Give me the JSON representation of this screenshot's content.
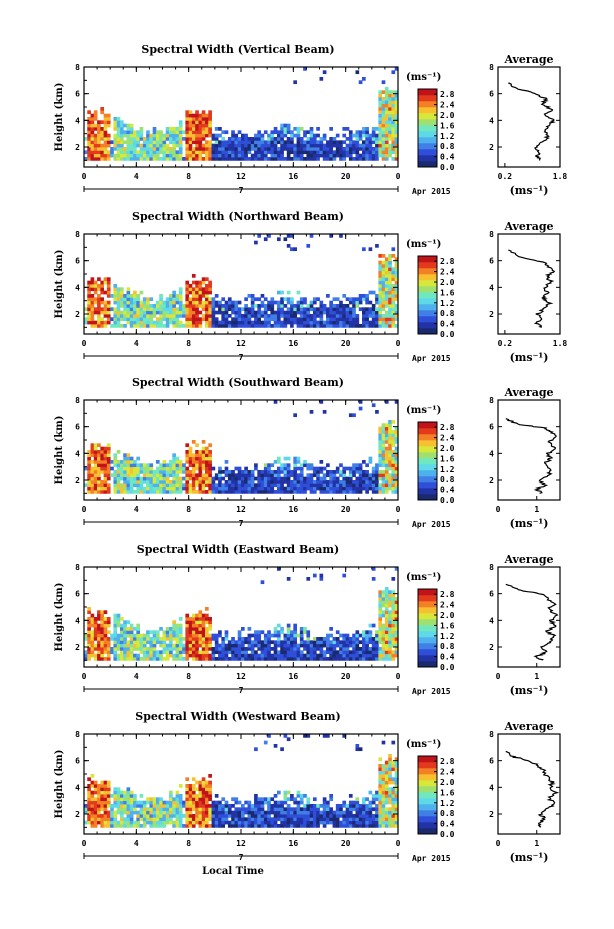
{
  "chart_data": [
    {
      "type": "heatmap",
      "title": "Spectral Width (Vertical Beam)",
      "ylabel": "Height (km)",
      "xlim": [
        0,
        24
      ],
      "ylim": [
        0.5,
        8
      ],
      "xticks": [
        "0",
        "4",
        "8",
        "12",
        "16",
        "20",
        "0"
      ],
      "yticks": [
        "2",
        "4",
        "6",
        "8"
      ],
      "date_tick": "7",
      "date_label": "Apr 2015",
      "colorbar_unit": "(ms⁻¹)",
      "colorbar_ticks": [
        "2.8",
        "2.4",
        "2.0",
        "1.6",
        "1.2",
        "0.8",
        "0.4",
        "0.0"
      ],
      "colorbar_range": [
        0,
        3.0
      ],
      "average": {
        "title": "Average",
        "xlabel": "(ms⁻¹)",
        "xticks": [
          "0.2",
          "1.8"
        ],
        "xlim": [
          0,
          1.8
        ],
        "ylim": [
          0.5,
          8
        ],
        "yticks": [
          "2",
          "4",
          "6",
          "8"
        ],
        "profile": [
          [
            1.25,
            1.0
          ],
          [
            1.15,
            1.3
          ],
          [
            1.2,
            1.6
          ],
          [
            1.1,
            2.0
          ],
          [
            1.3,
            2.4
          ],
          [
            1.45,
            2.8
          ],
          [
            1.35,
            3.2
          ],
          [
            1.5,
            3.6
          ],
          [
            1.6,
            4.0
          ],
          [
            1.35,
            4.4
          ],
          [
            1.55,
            4.8
          ],
          [
            1.3,
            5.2
          ],
          [
            1.4,
            5.6
          ],
          [
            1.1,
            6.0
          ],
          [
            0.55,
            6.4
          ],
          [
            0.3,
            6.8
          ]
        ]
      }
    },
    {
      "type": "heatmap",
      "title": "Spectral Width (Northward Beam)",
      "ylabel": "Height (km)",
      "xlim": [
        0,
        24
      ],
      "ylim": [
        0.5,
        8
      ],
      "xticks": [
        "0",
        "4",
        "8",
        "12",
        "16",
        "20",
        "0"
      ],
      "yticks": [
        "2",
        "4",
        "6",
        "8"
      ],
      "date_tick": "7",
      "date_label": "Apr 2015",
      "colorbar_unit": "(ms⁻¹)",
      "colorbar_ticks": [
        "2.8",
        "2.4",
        "2.0",
        "1.6",
        "1.2",
        "0.8",
        "0.4",
        "0.0"
      ],
      "colorbar_range": [
        0,
        3.0
      ],
      "average": {
        "title": "Average",
        "xlabel": "(ms⁻¹)",
        "xticks": [
          "0.2",
          "1.8"
        ],
        "xlim": [
          0,
          1.8
        ],
        "ylim": [
          0.5,
          8
        ],
        "yticks": [
          "2",
          "4",
          "6",
          "8"
        ],
        "profile": [
          [
            1.3,
            1.0
          ],
          [
            1.1,
            1.3
          ],
          [
            1.25,
            1.6
          ],
          [
            1.15,
            2.0
          ],
          [
            1.35,
            2.4
          ],
          [
            1.5,
            2.8
          ],
          [
            1.3,
            3.2
          ],
          [
            1.45,
            3.6
          ],
          [
            1.35,
            4.0
          ],
          [
            1.55,
            4.4
          ],
          [
            1.4,
            4.8
          ],
          [
            1.6,
            5.2
          ],
          [
            1.45,
            5.6
          ],
          [
            1.3,
            5.9
          ],
          [
            0.6,
            6.3
          ],
          [
            0.3,
            6.8
          ]
        ]
      }
    },
    {
      "type": "heatmap",
      "title": "Spectral Width (Southward Beam)",
      "ylabel": "Height (km)",
      "xlim": [
        0,
        24
      ],
      "ylim": [
        0.5,
        8
      ],
      "xticks": [
        "0",
        "4",
        "8",
        "12",
        "16",
        "20",
        "0"
      ],
      "yticks": [
        "2",
        "4",
        "6",
        "8"
      ],
      "date_tick": "7",
      "date_label": "Apr 2015",
      "colorbar_unit": "(ms⁻¹)",
      "colorbar_ticks": [
        "2.8",
        "2.4",
        "2.0",
        "1.6",
        "1.2",
        "0.8",
        "0.4",
        "0.0"
      ],
      "colorbar_range": [
        0,
        3.0
      ],
      "average": {
        "title": "Average",
        "xlabel": "(ms⁻¹)",
        "xticks": [
          "0",
          "1"
        ],
        "xlim": [
          0,
          1.6
        ],
        "ylim": [
          0.5,
          8
        ],
        "yticks": [
          "2",
          "4",
          "6",
          "8"
        ],
        "profile": [
          [
            1.1,
            1.0
          ],
          [
            1.0,
            1.3
          ],
          [
            1.2,
            1.6
          ],
          [
            1.1,
            2.0
          ],
          [
            1.3,
            2.4
          ],
          [
            1.4,
            2.8
          ],
          [
            1.2,
            3.2
          ],
          [
            1.35,
            3.6
          ],
          [
            1.3,
            4.0
          ],
          [
            1.45,
            4.4
          ],
          [
            1.3,
            4.8
          ],
          [
            1.5,
            5.2
          ],
          [
            1.4,
            5.6
          ],
          [
            1.2,
            5.9
          ],
          [
            0.5,
            6.2
          ],
          [
            0.2,
            6.6
          ]
        ]
      }
    },
    {
      "type": "heatmap",
      "title": "Spectral Width (Eastward Beam)",
      "ylabel": "Height (km)",
      "xlim": [
        0,
        24
      ],
      "ylim": [
        0.5,
        8
      ],
      "xticks": [
        "0",
        "4",
        "8",
        "12",
        "16",
        "20",
        "0"
      ],
      "yticks": [
        "2",
        "4",
        "6",
        "8"
      ],
      "date_tick": "7",
      "date_label": "Apr 2015",
      "colorbar_unit": "(ms⁻¹)",
      "colorbar_ticks": [
        "2.8",
        "2.4",
        "2.0",
        "1.6",
        "1.2",
        "0.8",
        "0.4",
        "0.0"
      ],
      "colorbar_range": [
        0,
        3.0
      ],
      "average": {
        "title": "Average",
        "xlabel": "(ms⁻¹)",
        "xticks": [
          "0",
          "1"
        ],
        "xlim": [
          0,
          1.6
        ],
        "ylim": [
          0.5,
          8
        ],
        "yticks": [
          "2",
          "4",
          "6",
          "8"
        ],
        "profile": [
          [
            1.15,
            1.0
          ],
          [
            1.0,
            1.3
          ],
          [
            1.25,
            1.6
          ],
          [
            1.1,
            2.0
          ],
          [
            1.35,
            2.4
          ],
          [
            1.45,
            2.8
          ],
          [
            1.25,
            3.2
          ],
          [
            1.5,
            3.6
          ],
          [
            1.35,
            4.0
          ],
          [
            1.55,
            4.4
          ],
          [
            1.3,
            4.8
          ],
          [
            1.45,
            5.2
          ],
          [
            1.3,
            5.6
          ],
          [
            1.1,
            6.0
          ],
          [
            0.5,
            6.3
          ],
          [
            0.2,
            6.7
          ]
        ]
      }
    },
    {
      "type": "heatmap",
      "title": "Spectral Width (Westward Beam)",
      "ylabel": "Height (km)",
      "xlabel": "Local Time",
      "xlim": [
        0,
        24
      ],
      "ylim": [
        0.5,
        8
      ],
      "xticks": [
        "0",
        "4",
        "8",
        "12",
        "16",
        "20",
        "0"
      ],
      "yticks": [
        "2",
        "4",
        "6",
        "8"
      ],
      "date_tick": "7",
      "date_label": "Apr 2015",
      "colorbar_unit": "(ms⁻¹)",
      "colorbar_ticks": [
        "2.8",
        "2.4",
        "2.0",
        "1.6",
        "1.2",
        "0.8",
        "0.4",
        "0.0"
      ],
      "colorbar_range": [
        0,
        3.0
      ],
      "average": {
        "title": "Average",
        "xlabel": "(ms⁻¹)",
        "xticks": [
          "0",
          "1"
        ],
        "xlim": [
          0,
          1.6
        ],
        "ylim": [
          0.5,
          8
        ],
        "yticks": [
          "2",
          "4",
          "6",
          "8"
        ],
        "profile": [
          [
            1.1,
            1.0
          ],
          [
            1.05,
            1.3
          ],
          [
            1.2,
            1.6
          ],
          [
            1.1,
            2.0
          ],
          [
            1.3,
            2.4
          ],
          [
            1.45,
            2.8
          ],
          [
            1.3,
            3.2
          ],
          [
            1.5,
            3.6
          ],
          [
            1.35,
            4.0
          ],
          [
            1.4,
            4.4
          ],
          [
            1.25,
            4.8
          ],
          [
            1.2,
            5.2
          ],
          [
            1.05,
            5.6
          ],
          [
            0.8,
            6.0
          ],
          [
            0.4,
            6.3
          ],
          [
            0.2,
            6.7
          ]
        ]
      }
    }
  ],
  "colors": {
    "colormap": [
      "#1a2a6e",
      "#2233a6",
      "#2f4fd9",
      "#3f7fe6",
      "#4fb0ee",
      "#5fd8e8",
      "#6fe8c0",
      "#9fe070",
      "#d8e83a",
      "#f7c030",
      "#f38025",
      "#e33a1e",
      "#c0141a"
    ]
  }
}
